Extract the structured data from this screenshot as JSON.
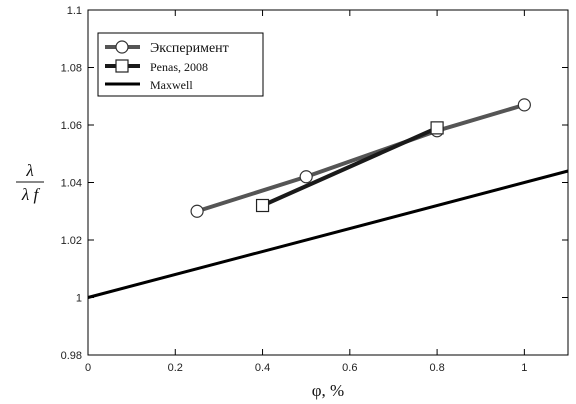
{
  "chart_data": {
    "type": "line",
    "xlabel": "φ, %",
    "ylabel_num": "λ",
    "ylabel_den": "λ f",
    "xlim": [
      0,
      1.1
    ],
    "ylim": [
      0.98,
      1.1
    ],
    "x_ticks": [
      0,
      0.2,
      0.4,
      0.6,
      0.8,
      1
    ],
    "x_tick_labels": [
      "0",
      "0.2",
      "0.4",
      "0.6",
      "0.8",
      "1"
    ],
    "y_ticks": [
      0.98,
      1,
      1.02,
      1.04,
      1.06,
      1.08,
      1.1
    ],
    "y_tick_labels": [
      "0.98",
      "1",
      "1.02",
      "1.04",
      "1.06",
      "1.08",
      "1.1"
    ],
    "grid": false,
    "legend_position": "top-left",
    "series": [
      {
        "name": "Эксперимент",
        "marker": "circle",
        "color": "#555555",
        "x": [
          0.25,
          0.5,
          0.8,
          1.0
        ],
        "y": [
          1.03,
          1.042,
          1.058,
          1.067
        ]
      },
      {
        "name": "Penas, 2008",
        "marker": "square",
        "color": "#1a1a1a",
        "x": [
          0.4,
          0.8
        ],
        "y": [
          1.032,
          1.059
        ]
      },
      {
        "name": "Maxwell",
        "marker": "none",
        "color": "#000000",
        "x": [
          0,
          1.1
        ],
        "y": [
          1.0,
          1.044
        ]
      }
    ]
  }
}
